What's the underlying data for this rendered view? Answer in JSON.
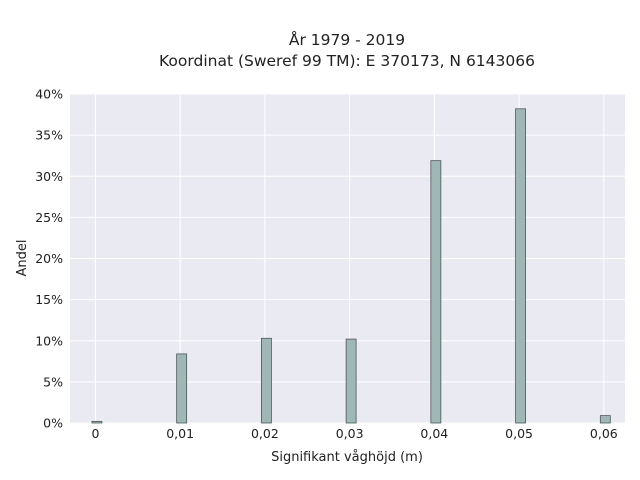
{
  "chart_data": {
    "type": "bar",
    "title_lines": [
      "År 1979 - 2019",
      "Koordinat (Sweref 99 TM): E 370173, N 6143066"
    ],
    "xlabel": "Signifikant våghöjd (m)",
    "ylabel": "Andel",
    "x_ticks": [
      "0",
      "0,01",
      "0,02",
      "0,03",
      "0,04",
      "0,05",
      "0,06"
    ],
    "y_ticks": [
      "0%",
      "5%",
      "10%",
      "15%",
      "20%",
      "25%",
      "30%",
      "35%",
      "40%"
    ],
    "x_values": [
      0.0,
      0.01,
      0.02,
      0.03,
      0.04,
      0.05,
      0.06
    ],
    "values": [
      0.2,
      8.4,
      10.3,
      10.2,
      31.9,
      38.2,
      0.9
    ],
    "xlim": [
      -0.003,
      0.0625
    ],
    "ylim": [
      0,
      40
    ],
    "grid": true,
    "colors": {
      "bar": "#9fb7b5",
      "bar_edge": "#4a5a58",
      "plot_bg": "#eaeaf2"
    }
  }
}
